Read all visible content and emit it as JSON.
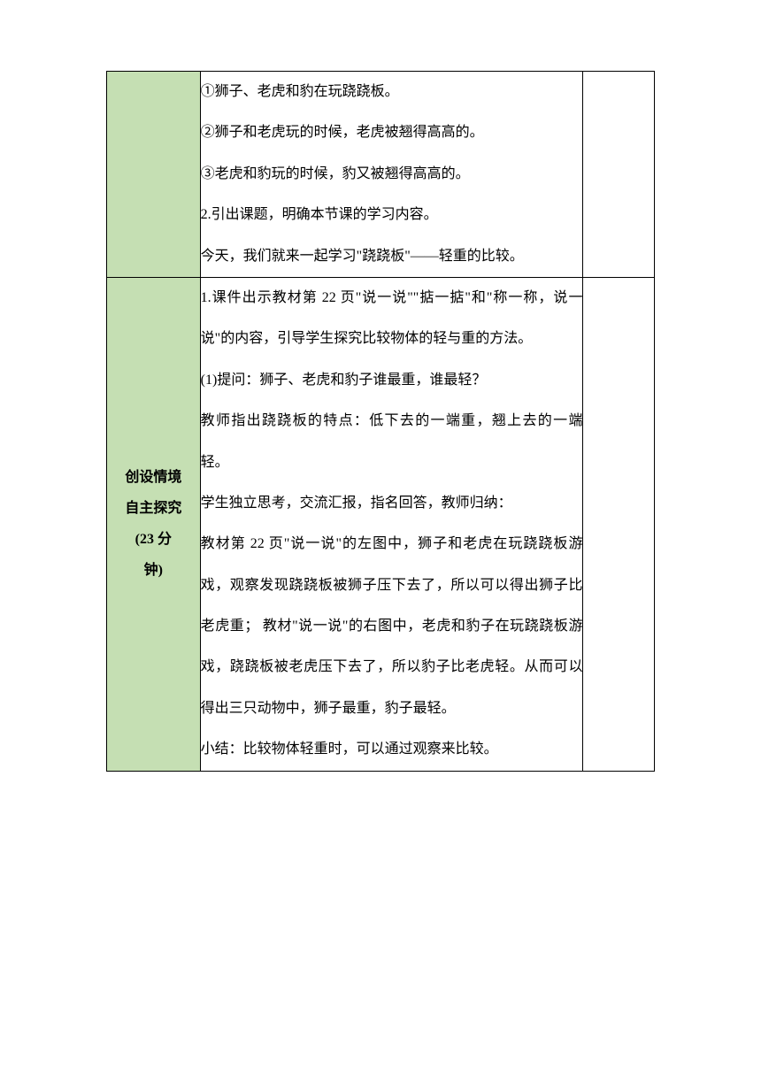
{
  "rows": [
    {
      "stage_lines": [],
      "content_lines": [
        "①狮子、老虎和豹在玩跷跷板。",
        "②狮子和老虎玩的时候，老虎被翘得高高的。",
        "③老虎和豹玩的时候，豹又被翘得高高的。",
        "2.引出课题，明确本节课的学习内容。",
        "今天，我们就来一起学习\"跷跷板\"——轻重的比较。"
      ]
    },
    {
      "stage_lines": [
        "创设情境",
        "自主探究",
        "(23 分",
        "钟)"
      ],
      "content_lines": [
        "1.课件出示教材第 22 页\"说一说\"\"掂一掂\"和\"称一称，说一说\"的内容，引导学生探究比较物体的轻与重的方法。",
        "(1)提问：狮子、老虎和豹子谁最重，谁最轻？",
        "教师指出跷跷板的特点：低下去的一端重，翘上去的一端轻。",
        "学生独立思考，交流汇报，指名回答，教师归纳：",
        "教材第 22 页\"说一说\"的左图中，狮子和老虎在玩跷跷板游戏，观察发现跷跷板被狮子压下去了，所以可以得出狮子比老虎重；  教材\"说一说\"的右图中，老虎和豹子在玩跷跷板游戏，跷跷板被老虎压下去了，所以豹子比老虎轻。从而可以得出三只动物中，狮子最重，豹子最轻。",
        "小结：比较物体轻重时，可以通过观察来比较。"
      ]
    }
  ],
  "colors": {
    "stage_bg": "#c5dfb3",
    "border": "#000000",
    "text": "#000000",
    "page_bg": "#ffffff"
  },
  "typography": {
    "body_fontsize": 16,
    "line_height": 2.9,
    "stage_fontweight": "bold"
  },
  "layout": {
    "col_stage_width": 105,
    "col_content_width": 430,
    "col_notes_width": 80
  }
}
